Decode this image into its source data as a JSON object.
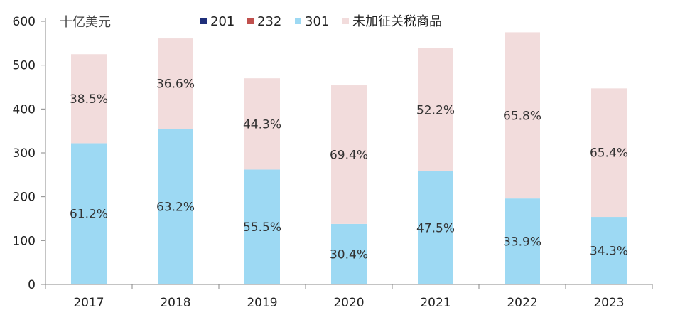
{
  "chart_data": {
    "type": "bar",
    "stacked": true,
    "title": "",
    "unit_label": "十亿美元",
    "xlabel": "",
    "ylabel": "",
    "ylim": [
      0,
      600
    ],
    "yticks": [
      0,
      100,
      200,
      300,
      400,
      500,
      600
    ],
    "grid": false,
    "categories": [
      "2017",
      "2018",
      "2019",
      "2020",
      "2021",
      "2022",
      "2023"
    ],
    "legend_position": "top",
    "series": [
      {
        "name": "201",
        "color": "#1f2f7a",
        "values": [
          0,
          0,
          0,
          0,
          0,
          0,
          0
        ],
        "labels": []
      },
      {
        "name": "232",
        "color": "#c0504d",
        "values": [
          0,
          0,
          0,
          0,
          0,
          0,
          0
        ],
        "labels": []
      },
      {
        "name": "301",
        "color": "#9dd9f3",
        "values": [
          322,
          355,
          262,
          138,
          258,
          196,
          154
        ],
        "labels": [
          "61.2%",
          "63.2%",
          "55.5%",
          "30.4%",
          "47.5%",
          "33.9%",
          "34.3%"
        ]
      },
      {
        "name": "未加征关税商品",
        "color": "#f2dcdc",
        "values": [
          203,
          206,
          208,
          316,
          281,
          379,
          293
        ],
        "labels": [
          "38.5%",
          "36.6%",
          "44.3%",
          "69.4%",
          "52.2%",
          "65.8%",
          "65.4%"
        ]
      }
    ]
  }
}
